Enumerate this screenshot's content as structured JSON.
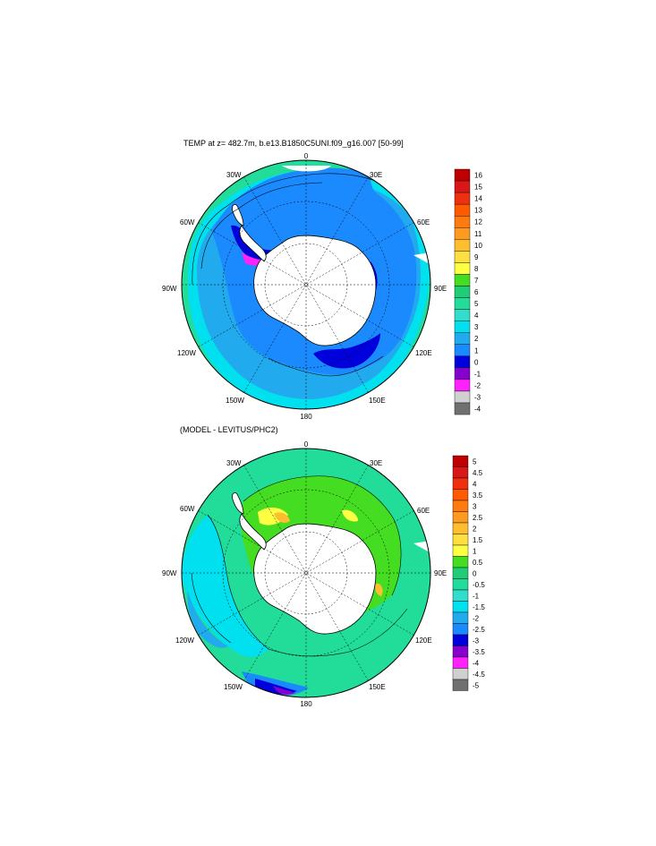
{
  "panels": [
    {
      "title": "TEMP at z= 482.7m, b.e13.B1850C5UNI.f09_g16.007 [50-99]",
      "lon_labels": [
        "0",
        "30E",
        "60E",
        "90E",
        "120E",
        "150E",
        "180",
        "150W",
        "120W",
        "90W",
        "60W",
        "30W"
      ],
      "colorbar": {
        "labels": [
          "16",
          "15",
          "14",
          "13",
          "12",
          "11",
          "10",
          "9",
          "8",
          "7",
          "6",
          "5",
          "4",
          "3",
          "2",
          "1",
          "0",
          "-1",
          "-2",
          "-3",
          "-4"
        ],
        "colors": [
          "#c00000",
          "#d81818",
          "#ee3010",
          "#ff5a00",
          "#ff7a10",
          "#ff9a20",
          "#ffbe30",
          "#ffe040",
          "#ffff44",
          "#44dd22",
          "#22cc77",
          "#22dd99",
          "#33ddcc",
          "#00e0ee",
          "#22aaee",
          "#1c8aff",
          "#0000dd",
          "#8800cc",
          "#ff22ff",
          "#d0d0d0",
          "#707070"
        ]
      }
    },
    {
      "title": "(MODEL - LEVITUS/PHC2)",
      "lon_labels": [
        "0",
        "30E",
        "60E",
        "90E",
        "120E",
        "150E",
        "180",
        "150W",
        "120W",
        "90W",
        "60W",
        "30W"
      ],
      "colorbar": {
        "labels": [
          "5",
          "4.5",
          "4",
          "3.5",
          "3",
          "2.5",
          "2",
          "1.5",
          "1",
          "0.5",
          "0",
          "-0.5",
          "-1",
          "-1.5",
          "-2",
          "-2.5",
          "-3",
          "-3.5",
          "-4",
          "-4.5",
          "-5"
        ],
        "colors": [
          "#c00000",
          "#d81818",
          "#ee3010",
          "#ff5a00",
          "#ff7a10",
          "#ff9a20",
          "#ffbe30",
          "#ffe040",
          "#ffff44",
          "#44dd22",
          "#22cc77",
          "#22dd99",
          "#33ddcc",
          "#00e0ee",
          "#22aaee",
          "#1c8aff",
          "#0000dd",
          "#8800cc",
          "#ff22ff",
          "#d0d0d0",
          "#707070"
        ]
      }
    }
  ]
}
